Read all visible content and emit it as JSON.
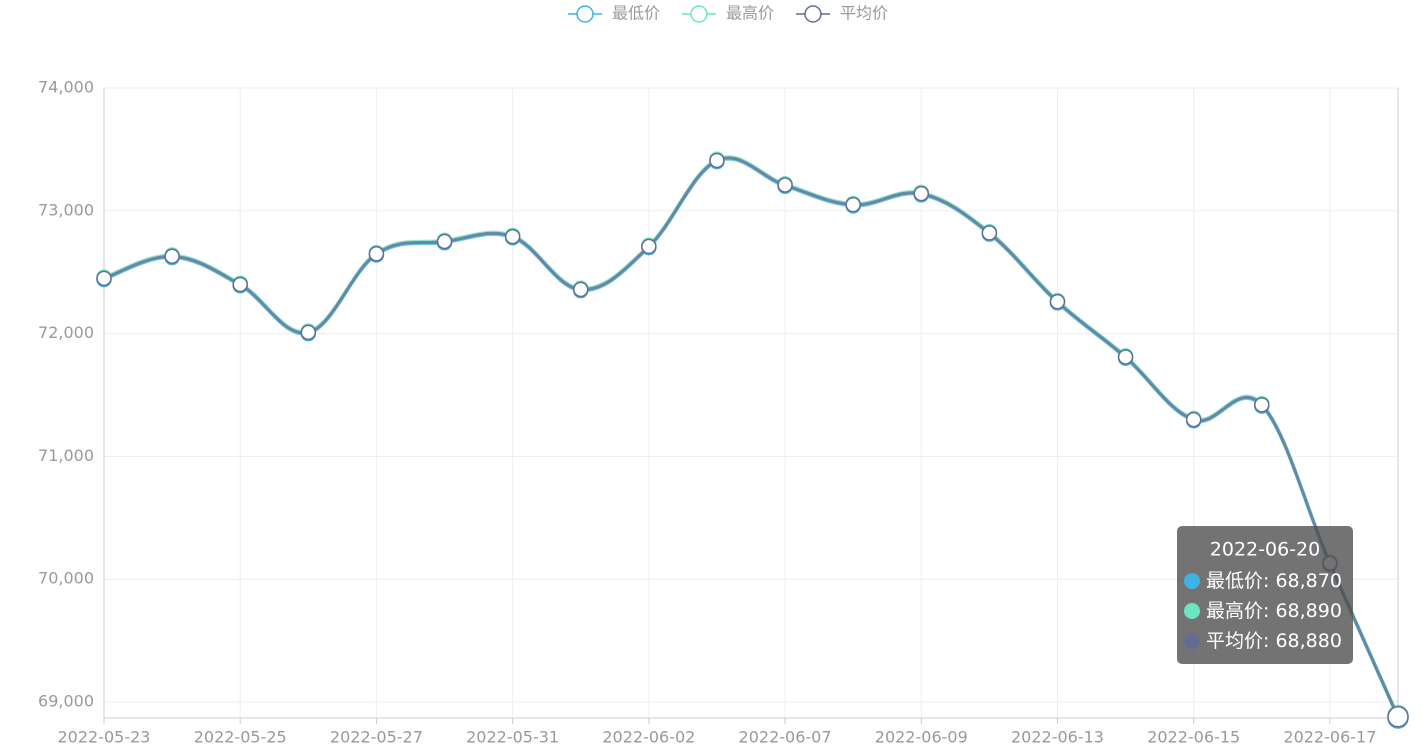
{
  "chart_data": {
    "type": "line",
    "categories": [
      "2022-05-23",
      null,
      "2022-05-25",
      null,
      "2022-05-27",
      null,
      "2022-05-31",
      null,
      "2022-06-02",
      null,
      "2022-06-07",
      null,
      "2022-06-09",
      null,
      "2022-06-13",
      null,
      "2022-06-15",
      null,
      "2022-06-17",
      "2022-06-20"
    ],
    "series": [
      {
        "name": "最低价",
        "color": "#3fb1e3",
        "values": [
          72440,
          72620,
          72390,
          72000,
          72640,
          72740,
          72780,
          72350,
          72700,
          73400,
          73200,
          73040,
          73130,
          72810,
          72250,
          71800,
          71290,
          71410,
          70120,
          68870
        ],
        "value_labels": [
          null,
          null,
          null,
          null,
          null,
          null,
          null,
          null,
          null,
          null,
          null,
          null,
          null,
          null,
          null,
          null,
          null,
          null,
          null,
          "68,870"
        ]
      },
      {
        "name": "最高价",
        "color": "#6be6c1",
        "values": [
          72460,
          72640,
          72410,
          72020,
          72660,
          72760,
          72800,
          72370,
          72720,
          73420,
          73220,
          73060,
          73150,
          72830,
          72270,
          71820,
          71310,
          71430,
          70140,
          68890
        ],
        "value_labels": [
          null,
          null,
          null,
          null,
          null,
          null,
          null,
          null,
          null,
          null,
          null,
          null,
          null,
          null,
          null,
          null,
          null,
          null,
          null,
          "68,890"
        ]
      },
      {
        "name": "平均价",
        "color": "#626c91",
        "values": [
          72450,
          72630,
          72400,
          72010,
          72650,
          72750,
          72790,
          72360,
          72710,
          73410,
          73210,
          73050,
          73140,
          72820,
          72260,
          71810,
          71300,
          71420,
          70130,
          68880
        ],
        "value_labels": [
          null,
          null,
          null,
          null,
          null,
          null,
          null,
          null,
          null,
          null,
          null,
          null,
          null,
          null,
          null,
          null,
          null,
          null,
          null,
          "68,880"
        ]
      }
    ],
    "ylim": [
      68870,
      74000
    ],
    "yticks": [
      {
        "value": 69000,
        "label": "69,000"
      },
      {
        "value": 70000,
        "label": "70,000"
      },
      {
        "value": 71000,
        "label": "71,000"
      },
      {
        "value": 72000,
        "label": "72,000"
      },
      {
        "value": 73000,
        "label": "73,000"
      },
      {
        "value": 74000,
        "label": "74,000"
      }
    ],
    "grid": true
  }
}
